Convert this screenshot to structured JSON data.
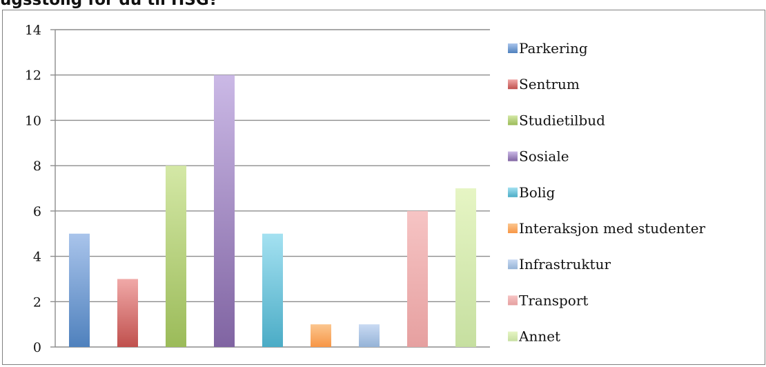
{
  "header": {
    "cut_title": "ugsstoiig for du til HSG?"
  },
  "chart_data": {
    "type": "bar",
    "title": "",
    "xlabel": "",
    "ylabel": "",
    "categories": [
      "Parkering",
      "Sentrum",
      "Studietilbud",
      "Sosiale",
      "Bolig",
      "Interaksjon med studenter",
      "Infrastruktur",
      "Transport",
      "Annet"
    ],
    "values": [
      5,
      3,
      8,
      12,
      5,
      1,
      1,
      6,
      7
    ],
    "ylim": [
      0,
      14
    ],
    "yticks": [
      "0",
      "2",
      "4",
      "6",
      "8",
      "10",
      "12",
      "14"
    ],
    "grid": true,
    "legend": "right",
    "colors": [
      "#4f81bd",
      "#c0504d",
      "#9bbb59",
      "#8064a2",
      "#4bacc6",
      "#f79646",
      "#95b3d7",
      "#e6a0a0",
      "#c6dfa0"
    ],
    "colors_light": [
      "#a9c4eb",
      "#f0a9a8",
      "#d4e8a6",
      "#cbb9e6",
      "#a4e1f1",
      "#fbc68f",
      "#c9daf3",
      "#f6c4c4",
      "#e6f5c4"
    ]
  }
}
